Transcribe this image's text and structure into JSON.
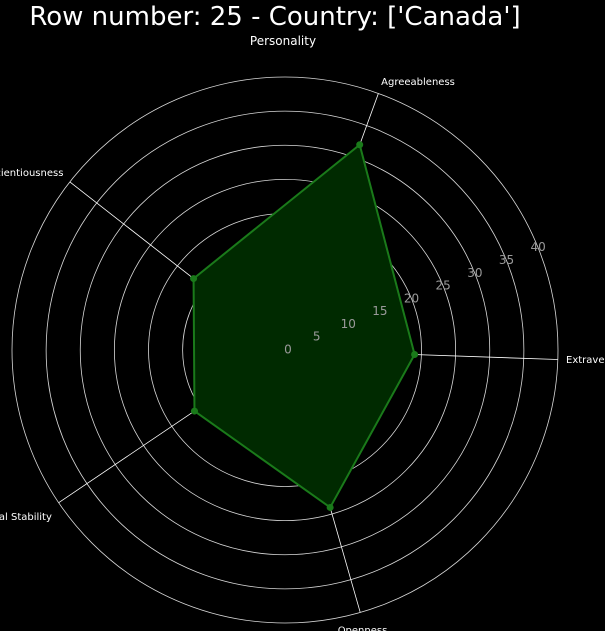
{
  "title": "Row number: 25 - Country: ['Canada']",
  "chart_data": {
    "type": "radar",
    "subtitle": "Personality",
    "axes": [
      "Extraversion",
      "Agreeableness",
      "Conscientiousness",
      "Emotional Stability",
      "Openness"
    ],
    "values": [
      19,
      32,
      17,
      16,
      24
    ],
    "rticks": [
      0,
      5,
      10,
      15,
      20,
      25,
      30,
      35,
      40
    ],
    "rlim": [
      0,
      40
    ],
    "grid": true,
    "series_color": "#1a7a1a",
    "fill_color": "#002a00",
    "grid_color": "#ffffff",
    "background": "#000000"
  }
}
